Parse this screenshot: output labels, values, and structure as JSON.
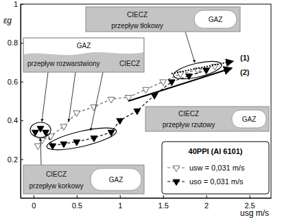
{
  "chart_data": {
    "type": "line",
    "x_label": "usg m/s",
    "y_label": "εg",
    "xlim": [
      -0.15,
      2.75
    ],
    "xticks": [
      0,
      0.5,
      1,
      1.5,
      2,
      2.5
    ],
    "ylim": [
      0,
      1
    ],
    "yticks": [
      0.2,
      0.4,
      0.6,
      0.8,
      1
    ],
    "legend": "lower right",
    "legend_title": "40PPI (Al 6101)",
    "series": [
      {
        "name": "usw = 0,031 m/s",
        "color": "#666666",
        "marker": "triangle-down-open",
        "line_style": "dashed",
        "x": [
          0.05,
          0.1,
          0.2,
          0.35,
          0.5,
          0.7,
          0.9,
          1.1,
          1.3,
          1.5,
          1.7,
          1.9,
          2.1
        ],
        "values": [
          0.27,
          0.3,
          0.32,
          0.37,
          0.44,
          0.47,
          0.51,
          0.52,
          0.56,
          0.6,
          0.64,
          0.66,
          0.68
        ]
      },
      {
        "name": "uso = 0,031 m/s",
        "color": "#000000",
        "marker": "triangle-down",
        "line_style": "dashed",
        "x": [
          0.02,
          0.08,
          0.14,
          0.22,
          0.35,
          0.5,
          0.7,
          0.9,
          1.0,
          1.2,
          1.4,
          1.6,
          1.8,
          2.0
        ],
        "values": [
          0.34,
          0.36,
          0.34,
          0.27,
          0.28,
          0.29,
          0.31,
          0.34,
          0.4,
          0.45,
          0.53,
          0.6,
          0.63,
          0.66
        ]
      }
    ],
    "annotations": [
      "CIECZ",
      "przepływ tłokowy",
      "GAZ",
      "GAZ",
      "przepływ rozwarstwiony",
      "CIECZ",
      "CIECZ",
      "przepływ rzutowy",
      "GAZ",
      "CIECZ",
      "przepływ korkowy",
      "GAZ",
      "(1)",
      "(2)"
    ]
  }
}
